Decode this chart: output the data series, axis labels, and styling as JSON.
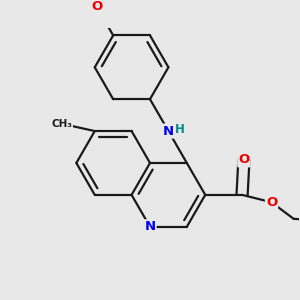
{
  "bg_color": "#e8e8e8",
  "bond_color": "#1a1a1a",
  "bond_width": 1.6,
  "atom_colors": {
    "N": "#0000ee",
    "O": "#ee0000",
    "NH_N": "#0000ee",
    "NH_H": "#008b8b",
    "C": "#1a1a1a"
  },
  "font_size": 9.5
}
